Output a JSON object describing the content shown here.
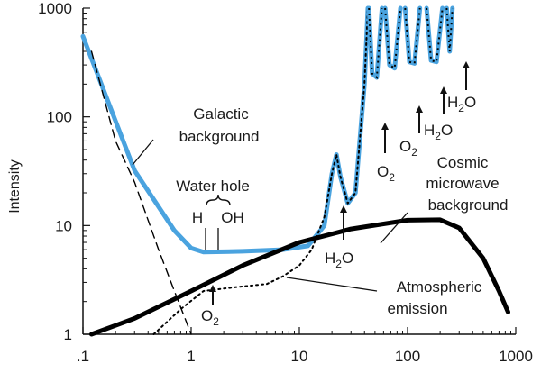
{
  "chart_data": {
    "type": "line",
    "xscale": "log",
    "yscale": "log",
    "xlim": [
      0.1,
      1000
    ],
    "ylim": [
      1,
      1000
    ],
    "xticks": [
      ".1",
      "1",
      "10",
      "100",
      "1000"
    ],
    "yticks": [
      "1",
      "10",
      "100",
      "1000"
    ],
    "xlabel": "",
    "ylabel": "Intensity",
    "series": [
      {
        "name": "",
        "color": "#4aa3df",
        "style": "solid-thick",
        "points": [
          [
            0.1,
            550
          ],
          [
            0.3,
            32
          ],
          [
            0.7,
            9
          ],
          [
            1,
            6.2
          ],
          [
            1.3,
            5.7
          ],
          [
            3,
            5.8
          ],
          [
            7,
            6
          ],
          [
            12,
            6.5
          ],
          [
            17,
            10
          ],
          [
            20,
            30
          ],
          [
            22,
            45
          ],
          [
            24,
            28
          ],
          [
            28,
            16
          ],
          [
            33,
            20
          ],
          [
            40,
            200
          ],
          [
            43,
            1000
          ]
        ]
      },
      {
        "name": "",
        "color": "#000000",
        "style": "solid-thick",
        "points": [
          [
            0.12,
            1
          ],
          [
            0.3,
            1.4
          ],
          [
            1,
            2.5
          ],
          [
            3,
            4.3
          ],
          [
            10,
            7
          ],
          [
            30,
            9.3
          ],
          [
            100,
            11.2
          ],
          [
            200,
            11.3
          ],
          [
            300,
            9.5
          ],
          [
            500,
            5
          ],
          [
            700,
            2.5
          ],
          [
            850,
            1.6
          ]
        ]
      },
      {
        "name": "",
        "color": "#000000",
        "style": "dotted",
        "points": [
          [
            0.45,
            1
          ],
          [
            0.8,
            1.7
          ],
          [
            1.3,
            2.5
          ],
          [
            2.5,
            2.7
          ],
          [
            5,
            2.9
          ],
          [
            7,
            3.4
          ],
          [
            10,
            4.3
          ],
          [
            13,
            6
          ],
          [
            17,
            12
          ],
          [
            20,
            30
          ],
          [
            22,
            45
          ],
          [
            24,
            28
          ],
          [
            28,
            16
          ],
          [
            33,
            20
          ],
          [
            40,
            200
          ],
          [
            43,
            1000
          ]
        ]
      },
      {
        "name": "",
        "color": "#000000",
        "style": "dashed",
        "points": [
          [
            0.12,
            400
          ],
          [
            0.2,
            60
          ],
          [
            0.3,
            25
          ],
          [
            0.5,
            6
          ],
          [
            0.7,
            2.5
          ],
          [
            1,
            1
          ]
        ]
      }
    ],
    "annotations": {
      "galactic": [
        "Galactic",
        "background"
      ],
      "water_hole": "Water hole",
      "h": "H",
      "oh": "OH",
      "h2o_labels": [
        {
          "base": "H",
          "sub": "2",
          "tail": "O",
          "x": 22
        },
        {
          "base": "H",
          "sub": "2",
          "tail": "O",
          "x": 112
        },
        {
          "base": "H",
          "sub": "2",
          "tail": "O",
          "x": 185
        }
      ],
      "o2_labels": [
        {
          "base": "O",
          "sub": "2",
          "x": 1.6
        },
        {
          "base": "O",
          "sub": "2",
          "x": 60
        },
        {
          "base": "O",
          "sub": "2",
          "x": 119
        }
      ],
      "cmb": [
        "Cosmic",
        "microwave",
        "background"
      ],
      "atm": [
        "Atmospheric",
        "emission"
      ]
    }
  }
}
